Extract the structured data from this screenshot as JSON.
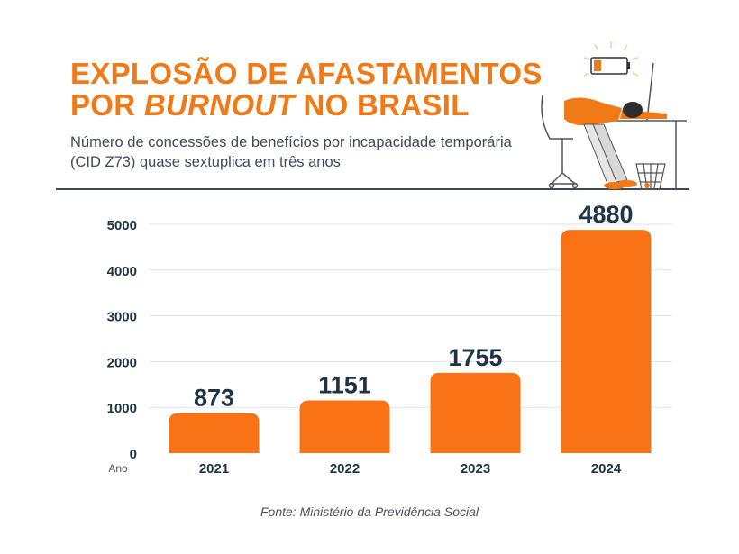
{
  "header": {
    "title_line1": "EXPLOSÃO DE AFASTAMENTOS",
    "title_line2_pre": "POR ",
    "title_line2_em": "BURNOUT",
    "title_line2_post": " NO BRASIL",
    "subtitle": "Número de concessões de benefícios por incapacidade temporária (CID Z73) quase sextuplica em três anos"
  },
  "illustration": {
    "icon": "burnout-worker-illustration"
  },
  "chart_data": {
    "type": "bar",
    "categories": [
      "2021",
      "2022",
      "2023",
      "2024"
    ],
    "values": [
      873,
      1151,
      1755,
      4880
    ],
    "data_labels": [
      "873",
      "1151",
      "1755",
      "4880"
    ],
    "xlabel": "Ano",
    "ylabel": "",
    "ylim": [
      0,
      5000
    ],
    "yticks": [
      0,
      1000,
      2000,
      3000,
      4000,
      5000
    ],
    "grid": true,
    "bar_color": "#f97316",
    "label_color": "#1f3346"
  },
  "source": "Fonte: Ministério da Previdência Social"
}
